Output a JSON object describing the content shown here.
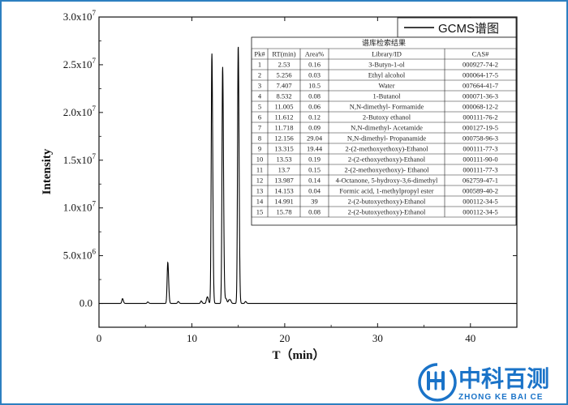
{
  "chart_data": {
    "type": "line",
    "title": "",
    "xlabel": "T（min）",
    "ylabel": "Intensity",
    "xlim": [
      0,
      45
    ],
    "ylim": [
      -2500000,
      30000000
    ],
    "x_ticks": [
      0,
      10,
      20,
      30,
      40
    ],
    "y_ticks": [
      {
        "value": 0,
        "label": "0.0"
      },
      {
        "value": 5000000,
        "label": "5.0x10",
        "exp": "6"
      },
      {
        "value": 10000000,
        "label": "1.0x10",
        "exp": "7"
      },
      {
        "value": 15000000,
        "label": "1.5x10",
        "exp": "7"
      },
      {
        "value": 20000000,
        "label": "2.0x10",
        "exp": "7"
      },
      {
        "value": 25000000,
        "label": "2.5x10",
        "exp": "7"
      },
      {
        "value": 30000000,
        "label": "3.0x10",
        "exp": "7"
      }
    ],
    "series": [
      {
        "name": "GCMS谱图",
        "color": "#000000",
        "peaks": [
          {
            "rt": 2.53,
            "height": 500000
          },
          {
            "rt": 5.256,
            "height": 150000
          },
          {
            "rt": 7.407,
            "height": 4300000
          },
          {
            "rt": 8.532,
            "height": 200000
          },
          {
            "rt": 11.005,
            "height": 250000
          },
          {
            "rt": 11.612,
            "height": 450000
          },
          {
            "rt": 11.718,
            "height": 400000
          },
          {
            "rt": 12.156,
            "height": 26200000
          },
          {
            "rt": 13.315,
            "height": 24800000
          },
          {
            "rt": 13.53,
            "height": 450000
          },
          {
            "rt": 13.7,
            "height": 400000
          },
          {
            "rt": 13.987,
            "height": 350000
          },
          {
            "rt": 14.153,
            "height": 300000
          },
          {
            "rt": 14.991,
            "height": 27000000
          },
          {
            "rt": 15.78,
            "height": 200000
          }
        ]
      }
    ],
    "legend": {
      "label": "GCMS谱图",
      "position": "top-right"
    }
  },
  "table": {
    "caption": "谱库检索结果",
    "headers": [
      "Pk#",
      "RT(min)",
      "Area%",
      "Library/ID",
      "CAS#"
    ],
    "rows": [
      [
        "1",
        "2.53",
        "0.16",
        "3-Butyn-1-ol",
        "000927-74-2"
      ],
      [
        "2",
        "5.256",
        "0.03",
        "Ethyl alcohol",
        "000064-17-5"
      ],
      [
        "3",
        "7.407",
        "10.5",
        "Water",
        "007664-41-7"
      ],
      [
        "4",
        "8.532",
        "0.08",
        "1-Butanol",
        "000071-36-3"
      ],
      [
        "5",
        "11.005",
        "0.06",
        "N,N-dimethyl- Formamide",
        "000068-12-2"
      ],
      [
        "6",
        "11.612",
        "0.12",
        "2-Butoxy ethanol",
        "000111-76-2"
      ],
      [
        "7",
        "11.718",
        "0.09",
        "N,N-dimethyl- Acetamide",
        "000127-19-5"
      ],
      [
        "8",
        "12.156",
        "29.04",
        "N,N-dimethyl- Propanamide",
        "000758-96-3"
      ],
      [
        "9",
        "13.315",
        "19.44",
        "2-(2-methoxyethoxy)-Ethanol",
        "000111-77-3"
      ],
      [
        "10",
        "13.53",
        "0.19",
        "2-(2-ethoxyethoxy)-Ethanol",
        "000111-90-0"
      ],
      [
        "11",
        "13.7",
        "0.15",
        "2-(2-methoxyethoxy)- Ethanol",
        "000111-77-3"
      ],
      [
        "12",
        "13.987",
        "0.14",
        "4-Octanone, 5-hydroxy-3,6-dimethyl",
        "062759-47-1"
      ],
      [
        "13",
        "14.153",
        "0.04",
        "Formic acid, 1-methylpropyl ester",
        "000589-40-2"
      ],
      [
        "14",
        "14.991",
        "39",
        "2-(2-butoxyethoxy)-Ethanol",
        "000112-34-5"
      ],
      [
        "15",
        "15.78",
        "0.08",
        "2-(2-butoxyethoxy)-Ethanol",
        "000112-34-5"
      ]
    ]
  },
  "logo": {
    "chinese": "中科百测",
    "english": "ZHONG KE BAI CE",
    "color": "#1a73c8"
  },
  "frame_color": "#2d7fc0"
}
